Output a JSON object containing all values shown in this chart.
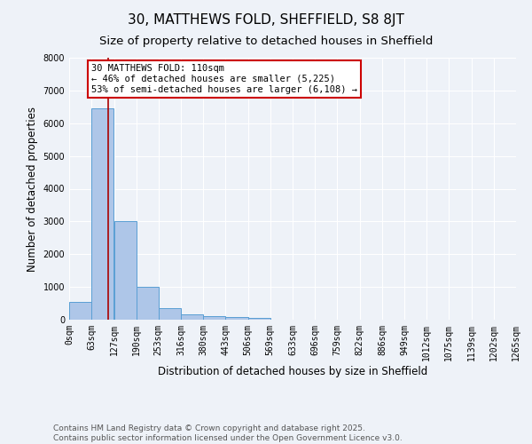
{
  "title": "30, MATTHEWS FOLD, SHEFFIELD, S8 8JT",
  "subtitle": "Size of property relative to detached houses in Sheffield",
  "xlabel": "Distribution of detached houses by size in Sheffield",
  "ylabel": "Number of detached properties",
  "bin_edges": [
    0,
    63,
    127,
    190,
    253,
    316,
    380,
    443,
    506,
    569,
    633,
    696,
    759,
    822,
    886,
    949,
    1012,
    1075,
    1139,
    1202,
    1265
  ],
  "bin_labels": [
    "0sqm",
    "63sqm",
    "127sqm",
    "190sqm",
    "253sqm",
    "316sqm",
    "380sqm",
    "443sqm",
    "506sqm",
    "569sqm",
    "633sqm",
    "696sqm",
    "759sqm",
    "822sqm",
    "886sqm",
    "949sqm",
    "1012sqm",
    "1075sqm",
    "1139sqm",
    "1202sqm",
    "1265sqm"
  ],
  "bar_heights": [
    550,
    6450,
    3000,
    1000,
    350,
    170,
    120,
    70,
    50,
    0,
    0,
    0,
    0,
    0,
    0,
    0,
    0,
    0,
    0,
    0
  ],
  "bar_color": "#aec6e8",
  "bar_edge_color": "#5a9fd4",
  "vline_x": 110,
  "vline_color": "#aa0000",
  "annotation_line1": "30 MATTHEWS FOLD: 110sqm",
  "annotation_line2": "← 46% of detached houses are smaller (5,225)",
  "annotation_line3": "53% of semi-detached houses are larger (6,108) →",
  "annotation_box_color": "#ffffff",
  "annotation_box_edge_color": "#cc0000",
  "ylim": [
    0,
    8000
  ],
  "yticks": [
    0,
    1000,
    2000,
    3000,
    4000,
    5000,
    6000,
    7000,
    8000
  ],
  "footnote": "Contains HM Land Registry data © Crown copyright and database right 2025.\nContains public sector information licensed under the Open Government Licence v3.0.",
  "background_color": "#eef2f8",
  "grid_color": "#ffffff",
  "title_fontsize": 11,
  "subtitle_fontsize": 9.5,
  "axis_label_fontsize": 8.5,
  "tick_fontsize": 7,
  "annotation_fontsize": 7.5,
  "footnote_fontsize": 6.5
}
